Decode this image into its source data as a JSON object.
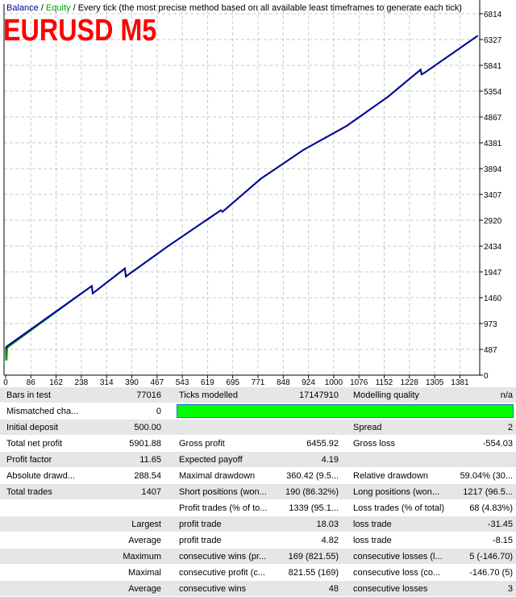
{
  "chart_header": {
    "balance_label": "Balance",
    "sep1": " / ",
    "equity_label": "Equity",
    "sep2": " / ",
    "method": "Every tick (the most precise method based on all available least timeframes to generate each tick)",
    "overlay_title": "EURUSD M5"
  },
  "colors": {
    "balance": "#0000a0",
    "equity": "#00a000",
    "title": "#ff0000",
    "quality_bar": "#00ff00"
  },
  "chart_data": {
    "type": "line",
    "title": "",
    "xlabel": "",
    "ylabel": "",
    "grid": true,
    "x_ticks": [
      "0",
      "86",
      "162",
      "238",
      "314",
      "390",
      "467",
      "543",
      "619",
      "695",
      "771",
      "848",
      "924",
      "1000",
      "1076",
      "1152",
      "1228",
      "1305",
      "1381"
    ],
    "y_ticks": [
      "0",
      "487",
      "973",
      "1460",
      "1947",
      "2434",
      "2920",
      "3407",
      "3894",
      "4381",
      "4867",
      "5354",
      "5841",
      "6327",
      "6814"
    ],
    "ylim": [
      0,
      6814
    ],
    "xlim": [
      0,
      1440
    ],
    "series": [
      {
        "name": "Balance",
        "x": [
          0,
          3,
          260,
          263,
          360,
          363,
          490,
          650,
          655,
          770,
          900,
          1030,
          1155,
          1253,
          1256,
          1265,
          1426
        ],
        "y": [
          500,
          540,
          1680,
          1540,
          2010,
          1860,
          2430,
          3110,
          3080,
          3700,
          4250,
          4700,
          5250,
          5760,
          5670,
          5700,
          6400
        ]
      },
      {
        "name": "Equity",
        "x": [
          0,
          1,
          3,
          5,
          260,
          263,
          360,
          363,
          490,
          650,
          655,
          770,
          900,
          1030,
          1155,
          1253,
          1256,
          1265,
          1426
        ],
        "y": [
          500,
          290,
          290,
          520,
          1680,
          1540,
          2010,
          1860,
          2430,
          3110,
          3080,
          3700,
          4250,
          4700,
          5250,
          5760,
          5670,
          5700,
          6400
        ]
      }
    ]
  },
  "report": {
    "r0": {
      "l1": "Bars in test",
      "v1": "77016",
      "l2": "Ticks modelled",
      "v2": "17147910",
      "l3": "Modelling quality",
      "v3": "n/a"
    },
    "r1": {
      "l1": "Mismatched cha...",
      "v1": "0"
    },
    "r2": {
      "l1": "Initial deposit",
      "v1": "500.00",
      "l3": "Spread",
      "v3": "2"
    },
    "r3": {
      "l1": "Total net profit",
      "v1": "5901.88",
      "l2": "Gross profit",
      "v2": "6455.92",
      "l3": "Gross loss",
      "v3": "-554.03"
    },
    "r4": {
      "l1": "Profit factor",
      "v1": "11.65",
      "l2": "Expected payoff",
      "v2": "4.19"
    },
    "r5": {
      "l1": "Absolute drawd...",
      "v1": "288.54",
      "l2": "Maximal drawdown",
      "v2": "360.42 (9.5...",
      "l3": "Relative drawdown",
      "v3": "59.04% (30..."
    },
    "r6": {
      "l1": "Total trades",
      "v1": "1407",
      "l2": "Short positions (won...",
      "v2": "190 (86.32%)",
      "l3": "Long positions (won...",
      "v3": "1217 (96.5..."
    },
    "r7": {
      "l2": "Profit trades (% of to...",
      "v2": "1339 (95.1...",
      "l3": "Loss trades (% of total)",
      "v3": "68 (4.83%)"
    },
    "r8": {
      "l1": "Largest",
      "l2": "profit trade",
      "v2": "18.03",
      "l3": "loss trade",
      "v3": "-31.45"
    },
    "r9": {
      "l1": "Average",
      "l2": "profit trade",
      "v2": "4.82",
      "l3": "loss trade",
      "v3": "-8.15"
    },
    "r10": {
      "l1": "Maximum",
      "l2": "consecutive wins (pr...",
      "v2": "169 (821.55)",
      "l3": "consecutive losses (l...",
      "v3": "5 (-146.70)"
    },
    "r11": {
      "l1": "Maximal",
      "l2": "consecutive profit (c...",
      "v2": "821.55 (169)",
      "l3": "consecutive loss (co...",
      "v3": "-146.70 (5)"
    },
    "r12": {
      "l1": "Average",
      "l2": "consecutive wins",
      "v2": "48",
      "l3": "consecutive losses",
      "v3": "3"
    }
  }
}
